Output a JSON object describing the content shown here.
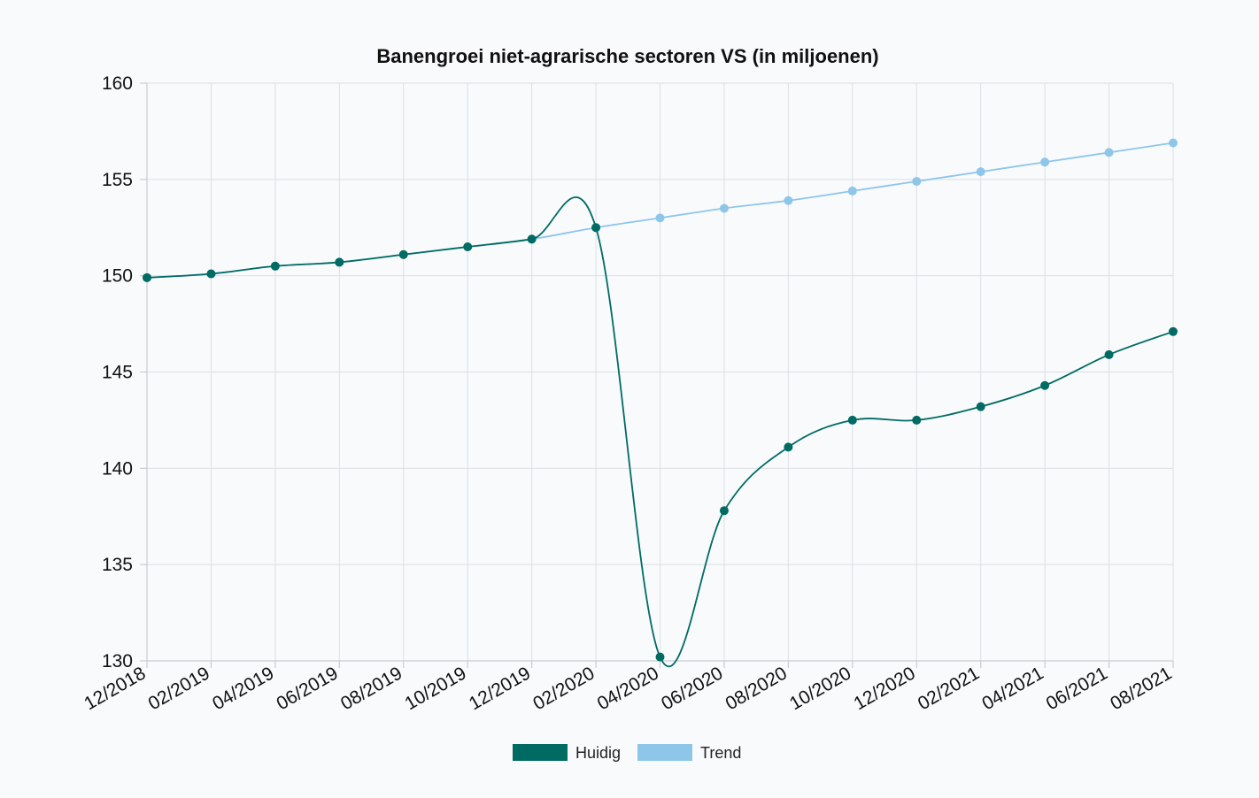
{
  "chart_data": {
    "type": "line",
    "title": "Banengroei niet-agrarische sectoren VS (in miljoenen)",
    "categories": [
      "12/2018",
      "02/2019",
      "04/2019",
      "06/2019",
      "08/2019",
      "10/2019",
      "12/2019",
      "02/2020",
      "04/2020",
      "06/2020",
      "08/2020",
      "10/2020",
      "12/2020",
      "02/2021",
      "04/2021",
      "06/2021",
      "08/2021"
    ],
    "series": [
      {
        "name": "Huidig",
        "color": "#006b63",
        "values": [
          149.9,
          150.1,
          150.5,
          150.7,
          151.1,
          151.5,
          151.9,
          152.5,
          130.2,
          137.8,
          141.1,
          142.5,
          142.5,
          143.2,
          144.3,
          145.9,
          147.1
        ]
      },
      {
        "name": "Trend",
        "color": "#8ec6ea",
        "values": [
          149.9,
          150.1,
          150.5,
          150.7,
          151.1,
          151.5,
          151.9,
          152.5,
          153.0,
          153.5,
          153.9,
          154.4,
          154.9,
          155.4,
          155.9,
          156.4,
          156.9
        ]
      }
    ],
    "yticks": [
      160,
      155,
      150,
      145,
      140,
      135,
      130
    ],
    "ylim": [
      130,
      160
    ],
    "grid": true,
    "legend_position": "bottom"
  }
}
